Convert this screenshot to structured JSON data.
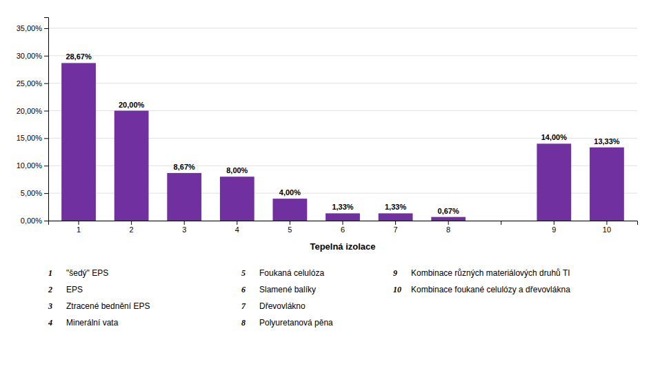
{
  "chart_data": {
    "type": "bar",
    "xlabel": "Tepelná izolace",
    "categories": [
      "1",
      "2",
      "3",
      "4",
      "5",
      "6",
      "7",
      "8",
      null,
      "9",
      "10"
    ],
    "values": [
      28.67,
      20.0,
      8.67,
      8.0,
      4.0,
      1.33,
      1.33,
      0.67,
      null,
      14.0,
      13.33
    ],
    "value_labels": [
      "28,67%",
      "20,00%",
      "8,67%",
      "8,00%",
      "4,00%",
      "1,33%",
      "1,33%",
      "0,67%",
      null,
      "14,00%",
      "13,33%"
    ],
    "data_labels": true,
    "color": "#7030A0",
    "ylim": [
      0,
      37
    ],
    "yticks": [
      {
        "value": 0,
        "label": "0,00%"
      },
      {
        "value": 5,
        "label": "5,00%"
      },
      {
        "value": 10,
        "label": "10,00%"
      },
      {
        "value": 15,
        "label": "15,00%"
      },
      {
        "value": 20,
        "label": "20,00%"
      },
      {
        "value": 25,
        "label": "25,00%"
      },
      {
        "value": 30,
        "label": "30,00%"
      },
      {
        "value": 35,
        "label": "35,00%"
      }
    ],
    "grid": true,
    "annotations": [
      {
        "label": "1",
        "text": "\"šedý\" EPS"
      },
      {
        "label": "2",
        "text": "EPS"
      },
      {
        "label": "3",
        "text": "Ztracené bednění EPS"
      },
      {
        "label": "4",
        "text": "Minerální vata"
      },
      {
        "label": "5",
        "text": "Foukaná celulóza"
      },
      {
        "label": "6",
        "text": "Slamené balíky"
      },
      {
        "label": "7",
        "text": "Dřevovlákno"
      },
      {
        "label": "8",
        "text": "Polyuretanová pěna"
      },
      {
        "label": "9",
        "text": "Kombinace různých materiálových druhů TI"
      },
      {
        "label": "10",
        "text": "Kombinace foukané celulózy a dřevovlákna"
      }
    ]
  }
}
